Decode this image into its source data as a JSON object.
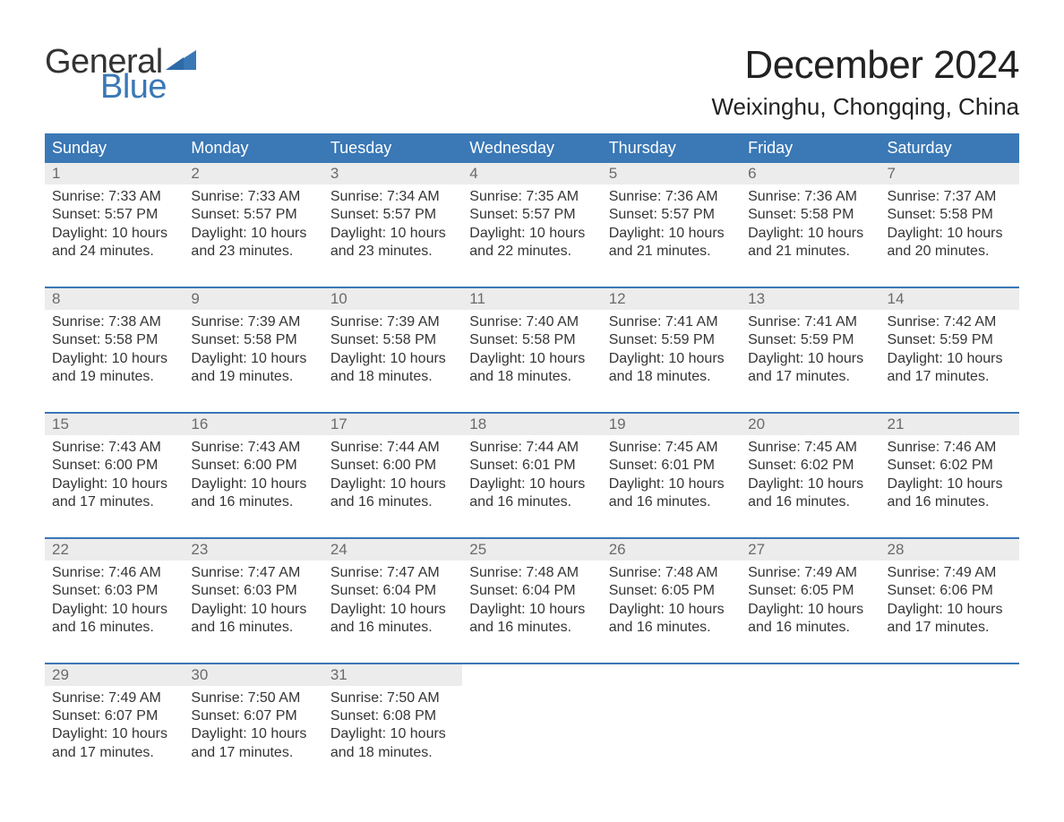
{
  "logo": {
    "general": "General",
    "blue": "Blue"
  },
  "title": "December 2024",
  "location": "Weixinghu, Chongqing, China",
  "colors": {
    "accent": "#3a78b6",
    "header_text": "#ffffff",
    "daynum_bg": "#ececec",
    "daynum_text": "#6b6b6b",
    "body_text": "#353535",
    "page_bg": "#ffffff"
  },
  "fonts": {
    "title_size_pt": 33,
    "location_size_pt": 20,
    "dayhead_size_pt": 14,
    "body_size_pt": 12
  },
  "day_headers": [
    "Sunday",
    "Monday",
    "Tuesday",
    "Wednesday",
    "Thursday",
    "Friday",
    "Saturday"
  ],
  "weeks": [
    [
      {
        "day": "1",
        "sunrise": "Sunrise: 7:33 AM",
        "sunset": "Sunset: 5:57 PM",
        "daylight1": "Daylight: 10 hours",
        "daylight2": "and 24 minutes."
      },
      {
        "day": "2",
        "sunrise": "Sunrise: 7:33 AM",
        "sunset": "Sunset: 5:57 PM",
        "daylight1": "Daylight: 10 hours",
        "daylight2": "and 23 minutes."
      },
      {
        "day": "3",
        "sunrise": "Sunrise: 7:34 AM",
        "sunset": "Sunset: 5:57 PM",
        "daylight1": "Daylight: 10 hours",
        "daylight2": "and 23 minutes."
      },
      {
        "day": "4",
        "sunrise": "Sunrise: 7:35 AM",
        "sunset": "Sunset: 5:57 PM",
        "daylight1": "Daylight: 10 hours",
        "daylight2": "and 22 minutes."
      },
      {
        "day": "5",
        "sunrise": "Sunrise: 7:36 AM",
        "sunset": "Sunset: 5:57 PM",
        "daylight1": "Daylight: 10 hours",
        "daylight2": "and 21 minutes."
      },
      {
        "day": "6",
        "sunrise": "Sunrise: 7:36 AM",
        "sunset": "Sunset: 5:58 PM",
        "daylight1": "Daylight: 10 hours",
        "daylight2": "and 21 minutes."
      },
      {
        "day": "7",
        "sunrise": "Sunrise: 7:37 AM",
        "sunset": "Sunset: 5:58 PM",
        "daylight1": "Daylight: 10 hours",
        "daylight2": "and 20 minutes."
      }
    ],
    [
      {
        "day": "8",
        "sunrise": "Sunrise: 7:38 AM",
        "sunset": "Sunset: 5:58 PM",
        "daylight1": "Daylight: 10 hours",
        "daylight2": "and 19 minutes."
      },
      {
        "day": "9",
        "sunrise": "Sunrise: 7:39 AM",
        "sunset": "Sunset: 5:58 PM",
        "daylight1": "Daylight: 10 hours",
        "daylight2": "and 19 minutes."
      },
      {
        "day": "10",
        "sunrise": "Sunrise: 7:39 AM",
        "sunset": "Sunset: 5:58 PM",
        "daylight1": "Daylight: 10 hours",
        "daylight2": "and 18 minutes."
      },
      {
        "day": "11",
        "sunrise": "Sunrise: 7:40 AM",
        "sunset": "Sunset: 5:58 PM",
        "daylight1": "Daylight: 10 hours",
        "daylight2": "and 18 minutes."
      },
      {
        "day": "12",
        "sunrise": "Sunrise: 7:41 AM",
        "sunset": "Sunset: 5:59 PM",
        "daylight1": "Daylight: 10 hours",
        "daylight2": "and 18 minutes."
      },
      {
        "day": "13",
        "sunrise": "Sunrise: 7:41 AM",
        "sunset": "Sunset: 5:59 PM",
        "daylight1": "Daylight: 10 hours",
        "daylight2": "and 17 minutes."
      },
      {
        "day": "14",
        "sunrise": "Sunrise: 7:42 AM",
        "sunset": "Sunset: 5:59 PM",
        "daylight1": "Daylight: 10 hours",
        "daylight2": "and 17 minutes."
      }
    ],
    [
      {
        "day": "15",
        "sunrise": "Sunrise: 7:43 AM",
        "sunset": "Sunset: 6:00 PM",
        "daylight1": "Daylight: 10 hours",
        "daylight2": "and 17 minutes."
      },
      {
        "day": "16",
        "sunrise": "Sunrise: 7:43 AM",
        "sunset": "Sunset: 6:00 PM",
        "daylight1": "Daylight: 10 hours",
        "daylight2": "and 16 minutes."
      },
      {
        "day": "17",
        "sunrise": "Sunrise: 7:44 AM",
        "sunset": "Sunset: 6:00 PM",
        "daylight1": "Daylight: 10 hours",
        "daylight2": "and 16 minutes."
      },
      {
        "day": "18",
        "sunrise": "Sunrise: 7:44 AM",
        "sunset": "Sunset: 6:01 PM",
        "daylight1": "Daylight: 10 hours",
        "daylight2": "and 16 minutes."
      },
      {
        "day": "19",
        "sunrise": "Sunrise: 7:45 AM",
        "sunset": "Sunset: 6:01 PM",
        "daylight1": "Daylight: 10 hours",
        "daylight2": "and 16 minutes."
      },
      {
        "day": "20",
        "sunrise": "Sunrise: 7:45 AM",
        "sunset": "Sunset: 6:02 PM",
        "daylight1": "Daylight: 10 hours",
        "daylight2": "and 16 minutes."
      },
      {
        "day": "21",
        "sunrise": "Sunrise: 7:46 AM",
        "sunset": "Sunset: 6:02 PM",
        "daylight1": "Daylight: 10 hours",
        "daylight2": "and 16 minutes."
      }
    ],
    [
      {
        "day": "22",
        "sunrise": "Sunrise: 7:46 AM",
        "sunset": "Sunset: 6:03 PM",
        "daylight1": "Daylight: 10 hours",
        "daylight2": "and 16 minutes."
      },
      {
        "day": "23",
        "sunrise": "Sunrise: 7:47 AM",
        "sunset": "Sunset: 6:03 PM",
        "daylight1": "Daylight: 10 hours",
        "daylight2": "and 16 minutes."
      },
      {
        "day": "24",
        "sunrise": "Sunrise: 7:47 AM",
        "sunset": "Sunset: 6:04 PM",
        "daylight1": "Daylight: 10 hours",
        "daylight2": "and 16 minutes."
      },
      {
        "day": "25",
        "sunrise": "Sunrise: 7:48 AM",
        "sunset": "Sunset: 6:04 PM",
        "daylight1": "Daylight: 10 hours",
        "daylight2": "and 16 minutes."
      },
      {
        "day": "26",
        "sunrise": "Sunrise: 7:48 AM",
        "sunset": "Sunset: 6:05 PM",
        "daylight1": "Daylight: 10 hours",
        "daylight2": "and 16 minutes."
      },
      {
        "day": "27",
        "sunrise": "Sunrise: 7:49 AM",
        "sunset": "Sunset: 6:05 PM",
        "daylight1": "Daylight: 10 hours",
        "daylight2": "and 16 minutes."
      },
      {
        "day": "28",
        "sunrise": "Sunrise: 7:49 AM",
        "sunset": "Sunset: 6:06 PM",
        "daylight1": "Daylight: 10 hours",
        "daylight2": "and 17 minutes."
      }
    ],
    [
      {
        "day": "29",
        "sunrise": "Sunrise: 7:49 AM",
        "sunset": "Sunset: 6:07 PM",
        "daylight1": "Daylight: 10 hours",
        "daylight2": "and 17 minutes."
      },
      {
        "day": "30",
        "sunrise": "Sunrise: 7:50 AM",
        "sunset": "Sunset: 6:07 PM",
        "daylight1": "Daylight: 10 hours",
        "daylight2": "and 17 minutes."
      },
      {
        "day": "31",
        "sunrise": "Sunrise: 7:50 AM",
        "sunset": "Sunset: 6:08 PM",
        "daylight1": "Daylight: 10 hours",
        "daylight2": "and 18 minutes."
      },
      null,
      null,
      null,
      null
    ]
  ]
}
